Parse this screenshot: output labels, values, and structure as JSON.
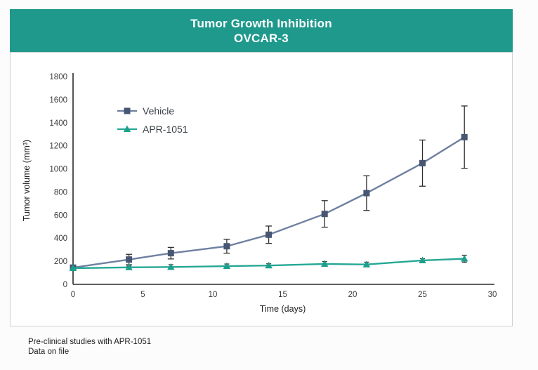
{
  "banner": {
    "title_line1": "Tumor Growth Inhibition",
    "title_line2": "OVCAR-3",
    "background_color": "#20998D"
  },
  "footer": {
    "line1": "Pre-clinical studies with APR-1051",
    "line2": "Data on file"
  },
  "chart_data": {
    "type": "line",
    "title": "Tumor Growth Inhibition OVCAR-3",
    "xlabel": "Time (days)",
    "ylabel": "Tumor volume (mm³)",
    "xlim": [
      0,
      30
    ],
    "ylim": [
      0,
      1800
    ],
    "x_ticks": [
      0,
      5,
      10,
      15,
      20,
      25,
      30
    ],
    "y_ticks": [
      0,
      200,
      400,
      600,
      800,
      1000,
      1200,
      1400,
      1600,
      1800
    ],
    "grid": false,
    "legend_position": "upper-left-inside",
    "x": [
      0,
      4,
      7,
      11,
      14,
      18,
      21,
      25,
      28
    ],
    "series": [
      {
        "name": "Vehicle",
        "marker": "square",
        "marker_color": "#475672",
        "line_color": "#6e80a1",
        "values": [
          145,
          215,
          270,
          330,
          430,
          610,
          790,
          1050,
          1275
        ],
        "errors": [
          0,
          45,
          50,
          60,
          75,
          115,
          150,
          200,
          270
        ]
      },
      {
        "name": "APR-1051",
        "marker": "triangle",
        "marker_color": "#1ca08c",
        "line_color": "#25a794",
        "values": [
          140,
          147,
          150,
          158,
          163,
          177,
          172,
          207,
          222
        ],
        "errors": [
          0,
          12,
          20,
          18,
          15,
          20,
          20,
          15,
          30
        ]
      }
    ],
    "error_bar_color": "#2e2e2e",
    "axis_color": "#2b2b2b",
    "tick_label_color": "#3b3b3b"
  }
}
